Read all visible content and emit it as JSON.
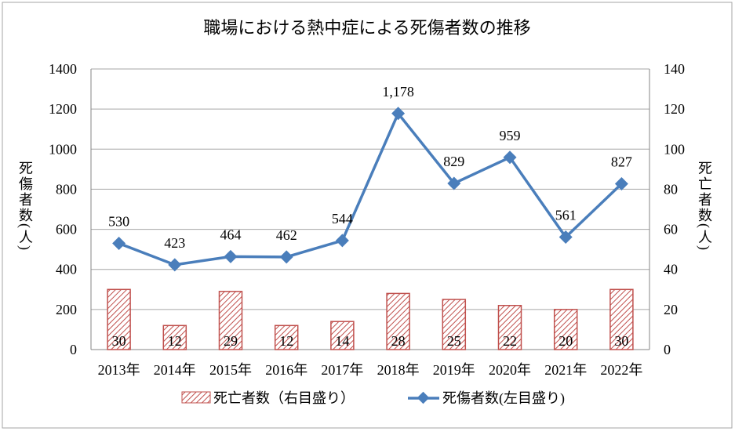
{
  "chart_data": {
    "type": "bar+line",
    "title": "職場における熱中症による死傷者数の推移",
    "categories": [
      "2013年",
      "2014年",
      "2015年",
      "2016年",
      "2017年",
      "2018年",
      "2019年",
      "2020年",
      "2021年",
      "2022年"
    ],
    "series": [
      {
        "name": "死亡者数（右目盛り）",
        "type": "bar",
        "axis": "right",
        "values": [
          30,
          12,
          29,
          12,
          14,
          28,
          25,
          22,
          20,
          30
        ],
        "labels": [
          "30",
          "12",
          "29",
          "12",
          "14",
          "28",
          "25",
          "22",
          "20",
          "30"
        ],
        "color": "#c0504d"
      },
      {
        "name": "死傷者数(左目盛り)",
        "type": "line",
        "axis": "left",
        "values": [
          530,
          423,
          464,
          462,
          544,
          1178,
          829,
          959,
          561,
          827
        ],
        "labels": [
          "530",
          "423",
          "464",
          "462",
          "544",
          "1,178",
          "829",
          "959",
          "561",
          "827"
        ],
        "color": "#4a7ebb"
      }
    ],
    "ylabel": "死傷者数(人)",
    "y2label": "死亡者数(人)",
    "ylim": [
      0,
      1400
    ],
    "y2lim": [
      0,
      140
    ],
    "yticks": [
      "0",
      "200",
      "400",
      "600",
      "800",
      "1000",
      "1200",
      "1400"
    ],
    "y2ticks": [
      "0",
      "20",
      "40",
      "60",
      "80",
      "100",
      "120",
      "140"
    ],
    "grid": true,
    "legend": "bottom"
  }
}
